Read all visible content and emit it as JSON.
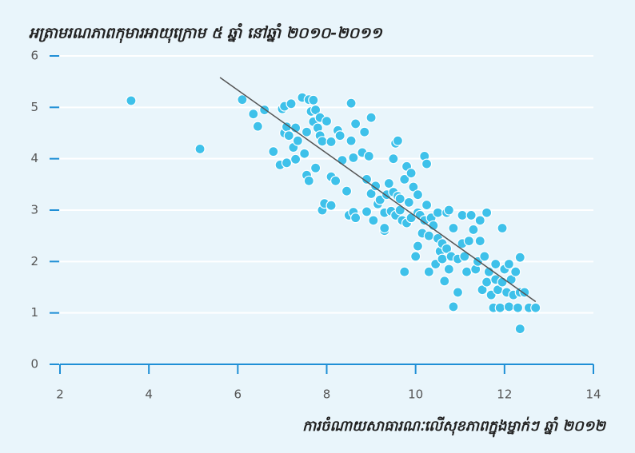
{
  "chart_data": {
    "type": "scatter",
    "title": "អត្រាមរណភាពកុមារអាយុក្រោម ៥ ឆ្នាំ នៅឆ្នាំ ២០១០-២០១១",
    "x_label": "ការចំណាយសាធារណៈលើសុខភាពក្នុងម្នាក់ៗ ឆ្នាំ ២០១២",
    "color": "#3ec1ea",
    "xlim": [
      2,
      14
    ],
    "xticks": [
      2,
      4,
      6,
      8,
      10,
      12,
      14
    ],
    "ylim": [
      0,
      6
    ],
    "yticks": [
      0,
      1,
      2,
      3,
      4,
      5,
      6
    ],
    "grid": true,
    "trend_line": {
      "color": "#555555",
      "x": [
        5.6,
        12.7
      ],
      "y": [
        5.58,
        1.22
      ]
    },
    "x": [
      3.6,
      5.15,
      6.1,
      6.35,
      6.45,
      6.6,
      6.8,
      6.95,
      7.0,
      7.05,
      7.05,
      7.1,
      7.1,
      7.15,
      7.2,
      7.25,
      7.3,
      7.3,
      7.35,
      7.45,
      7.5,
      7.55,
      7.55,
      7.6,
      7.6,
      7.65,
      7.7,
      7.7,
      7.75,
      7.75,
      7.8,
      7.85,
      7.85,
      7.9,
      7.9,
      7.95,
      8.0,
      8.1,
      8.1,
      8.1,
      8.2,
      8.25,
      8.3,
      8.35,
      8.45,
      8.5,
      8.55,
      8.55,
      8.6,
      8.6,
      8.65,
      8.65,
      8.8,
      8.85,
      8.9,
      8.9,
      8.95,
      9.0,
      9.0,
      9.05,
      9.1,
      9.15,
      9.2,
      9.3,
      9.3,
      9.3,
      9.35,
      9.4,
      9.45,
      9.5,
      9.5,
      9.55,
      9.55,
      9.6,
      9.6,
      9.65,
      9.65,
      9.7,
      9.75,
      9.75,
      9.8,
      9.8,
      9.85,
      9.9,
      9.9,
      9.95,
      10.0,
      10.05,
      10.05,
      10.05,
      10.1,
      10.15,
      10.2,
      10.2,
      10.25,
      10.25,
      10.3,
      10.3,
      10.35,
      10.4,
      10.45,
      10.5,
      10.5,
      10.55,
      10.6,
      10.6,
      10.65,
      10.7,
      10.7,
      10.75,
      10.75,
      10.8,
      10.85,
      10.85,
      10.95,
      10.95,
      11.05,
      11.05,
      11.1,
      11.15,
      11.2,
      11.25,
      11.3,
      11.35,
      11.4,
      11.45,
      11.5,
      11.55,
      11.6,
      11.6,
      11.65,
      11.7,
      11.75,
      11.8,
      11.8,
      11.85,
      11.9,
      11.95,
      12.0,
      12.05,
      12.1,
      12.1,
      12.15,
      12.2,
      12.25,
      12.3,
      12.35,
      12.35,
      12.35,
      12.45,
      12.55,
      12.7,
      11.95,
      11.45
    ],
    "y": [
      5.13,
      4.19,
      5.15,
      4.87,
      4.63,
      4.95,
      4.14,
      3.88,
      4.97,
      4.5,
      5.02,
      3.92,
      4.62,
      4.45,
      5.07,
      4.22,
      4.6,
      3.99,
      4.35,
      5.19,
      4.1,
      4.52,
      3.68,
      3.57,
      5.15,
      4.92,
      5.14,
      4.72,
      4.95,
      3.82,
      4.6,
      4.45,
      4.8,
      4.34,
      3.0,
      3.13,
      4.73,
      3.65,
      4.33,
      3.09,
      3.57,
      4.55,
      4.45,
      3.97,
      3.37,
      2.9,
      5.08,
      4.35,
      2.96,
      4.02,
      4.68,
      2.85,
      4.12,
      4.52,
      2.97,
      3.6,
      4.05,
      3.32,
      4.8,
      2.8,
      3.47,
      3.12,
      3.2,
      2.95,
      2.6,
      2.65,
      3.3,
      3.52,
      2.98,
      3.35,
      4.0,
      2.9,
      4.3,
      3.27,
      4.35,
      3.22,
      3.0,
      2.8,
      3.6,
      1.8,
      3.85,
      2.75,
      3.15,
      3.72,
      2.85,
      3.45,
      2.1,
      2.3,
      2.95,
      3.3,
      2.9,
      2.55,
      4.05,
      2.8,
      3.1,
      3.9,
      2.5,
      1.8,
      2.85,
      2.7,
      1.95,
      2.45,
      2.95,
      2.2,
      2.05,
      2.35,
      1.62,
      2.95,
      2.25,
      1.85,
      3.0,
      2.1,
      1.12,
      2.65,
      1.4,
      2.05,
      2.35,
      2.9,
      2.1,
      1.8,
      2.4,
      2.9,
      2.62,
      1.85,
      2.0,
      2.8,
      1.45,
      2.1,
      2.95,
      1.6,
      1.8,
      1.35,
      1.1,
      1.65,
      1.95,
      1.45,
      1.1,
      1.6,
      1.85,
      1.4,
      1.95,
      1.12,
      1.65,
      1.35,
      1.8,
      1.1,
      2.08,
      1.4,
      0.69,
      1.4,
      1.1,
      1.1,
      2.65,
      2.4
    ]
  }
}
